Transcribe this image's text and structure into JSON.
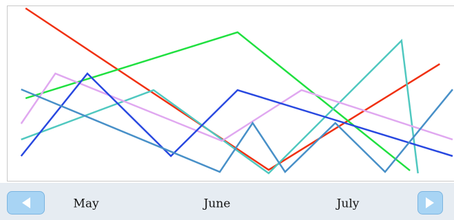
{
  "chart_data": {
    "type": "line",
    "xlim": [
      0,
      100
    ],
    "ylim": [
      0,
      100
    ],
    "grid": false,
    "series": [
      {
        "color": "#f03010",
        "x": [
          3.9,
          58.6,
          97.1
        ],
        "values": [
          99.2,
          4.4,
          66.5
        ]
      },
      {
        "color": "#20e040",
        "x": [
          3.9,
          51.6,
          90.4
        ],
        "values": [
          46.4,
          85.1,
          4.0
        ]
      },
      {
        "color": "#50c8c0",
        "x": [
          2.9,
          32.7,
          58.6,
          88.5,
          92.2
        ],
        "values": [
          22.2,
          51.2,
          2.4,
          80.2,
          2.4
        ]
      },
      {
        "color": "#e0a8f0",
        "x": [
          2.9,
          10.6,
          48.1,
          66.0,
          100
        ],
        "values": [
          31.5,
          60.9,
          21.4,
          51.2,
          22.2
        ]
      },
      {
        "color": "#2848e0",
        "x": [
          2.9,
          17.8,
          36.6,
          51.6,
          100
        ],
        "values": [
          12.5,
          60.9,
          12.5,
          51.2,
          12.5
        ]
      },
      {
        "color": "#4890c8",
        "x": [
          2.9,
          47.6,
          55.0,
          62.3,
          73.6,
          84.8,
          100
        ],
        "values": [
          51.6,
          3.2,
          31.9,
          3.2,
          31.9,
          3.2,
          51.6
        ]
      }
    ]
  },
  "navigator": {
    "labels": [
      "May",
      "June",
      "July"
    ]
  }
}
